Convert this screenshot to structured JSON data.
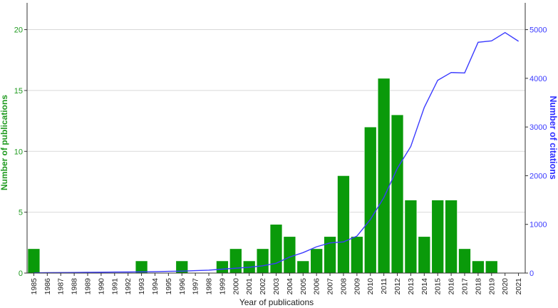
{
  "chart_data": {
    "type": "bar",
    "xlabel": "Year of publications",
    "ylabel": "Number of publications",
    "y2label": "Number of citations",
    "categories": [
      "1985",
      "1986",
      "1987",
      "1988",
      "1989",
      "1990",
      "1991",
      "1992",
      "1993",
      "1994",
      "1995",
      "1996",
      "1997",
      "1998",
      "1999",
      "2000",
      "2001",
      "2002",
      "2003",
      "2004",
      "2005",
      "2006",
      "2007",
      "2008",
      "2009",
      "2010",
      "2011",
      "2012",
      "2013",
      "2014",
      "2015",
      "2016",
      "2017",
      "2018",
      "2019",
      "2020",
      "2021"
    ],
    "ylim": [
      0,
      22.2
    ],
    "y2lim": [
      0,
      5550
    ],
    "yticks": [
      0,
      5,
      10,
      15,
      20
    ],
    "y2ticks": [
      0,
      1000,
      2000,
      3000,
      4000,
      5000
    ],
    "grid": "horizontal",
    "series": [
      {
        "name": "Number of publications",
        "type": "bar",
        "axis": "left",
        "color": "#0a9a0a",
        "values": [
          2,
          0,
          0,
          0,
          0,
          0,
          0,
          0,
          1,
          0,
          0,
          1,
          0,
          0,
          1,
          2,
          1,
          2,
          4,
          3,
          1,
          2,
          3,
          8,
          3,
          12,
          16,
          13,
          6,
          3,
          6,
          6,
          2,
          1,
          1,
          0,
          0
        ]
      },
      {
        "name": "Number of citations",
        "type": "line",
        "axis": "right",
        "color": "#3b3bff",
        "values": [
          5,
          8,
          10,
          12,
          15,
          18,
          20,
          22,
          25,
          28,
          35,
          40,
          50,
          60,
          80,
          100,
          120,
          150,
          200,
          330,
          420,
          540,
          620,
          640,
          760,
          1100,
          1550,
          2150,
          2600,
          3400,
          3960,
          4120,
          4110,
          4740,
          4770,
          4940,
          4760
        ]
      }
    ]
  },
  "colors": {
    "left_axis": "#1f9a1f",
    "right_axis": "#2f2fff",
    "grid": "#d9d9d9"
  }
}
